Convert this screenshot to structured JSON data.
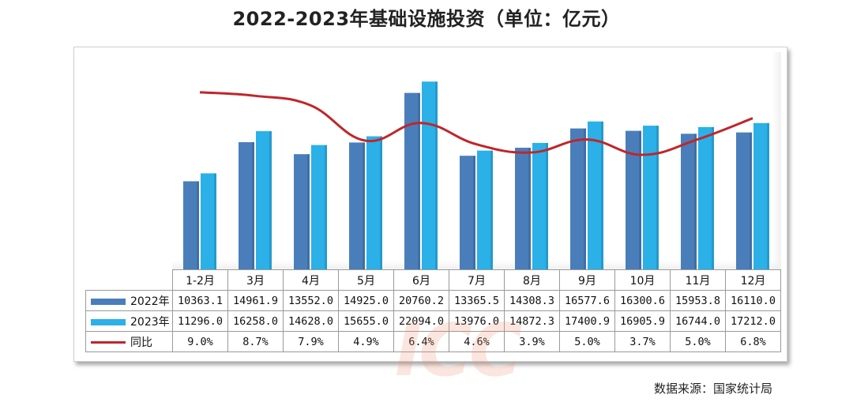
{
  "chart_data": {
    "type": "bar",
    "title": "2022-2023年基础设施投资（单位：亿元）",
    "categories": [
      "1-2月",
      "3月",
      "4月",
      "5月",
      "6月",
      "7月",
      "8月",
      "9月",
      "10月",
      "11月",
      "12月"
    ],
    "series": [
      {
        "name": "2022年",
        "type": "bar",
        "color": "#4a7ebb",
        "labels": [
          "10363.1",
          "14961.9",
          "13552.0",
          "14925.0",
          "20760.2",
          "13365.5",
          "14308.3",
          "16577.6",
          "16300.6",
          "15953.8",
          "16110.0"
        ],
        "values": [
          10363.1,
          14961.9,
          13552.0,
          14925.0,
          20760.2,
          13365.5,
          14308.3,
          16577.6,
          16300.6,
          15953.8,
          16110.0
        ]
      },
      {
        "name": "2023年",
        "type": "bar",
        "color": "#2bb0e8",
        "labels": [
          "11296.0",
          "16258.0",
          "14628.0",
          "15655.0",
          "22094.0",
          "13976.0",
          "14872.3",
          "17400.9",
          "16905.9",
          "16744.0",
          "17212.0"
        ],
        "values": [
          11296.0,
          16258.0,
          14628.0,
          15655.0,
          22094.0,
          13976.0,
          14872.3,
          17400.9,
          16905.9,
          16744.0,
          17212.0
        ]
      },
      {
        "name": "同比",
        "type": "line",
        "color": "#c0262a",
        "labels": [
          "9.0%",
          "8.7%",
          "7.9%",
          "4.9%",
          "6.4%",
          "4.6%",
          "3.9%",
          "5.0%",
          "3.7%",
          "5.0%",
          "6.8%"
        ],
        "values": [
          9.0,
          8.7,
          7.9,
          4.9,
          6.4,
          4.6,
          3.9,
          5.0,
          3.7,
          5.0,
          6.8
        ]
      }
    ],
    "ylim": [
      0,
      25000
    ],
    "y2lim": [
      -6,
      12
    ],
    "grid": false,
    "legend": "data-table"
  },
  "source": "数据来源：国家统计局",
  "watermark": "ICC"
}
